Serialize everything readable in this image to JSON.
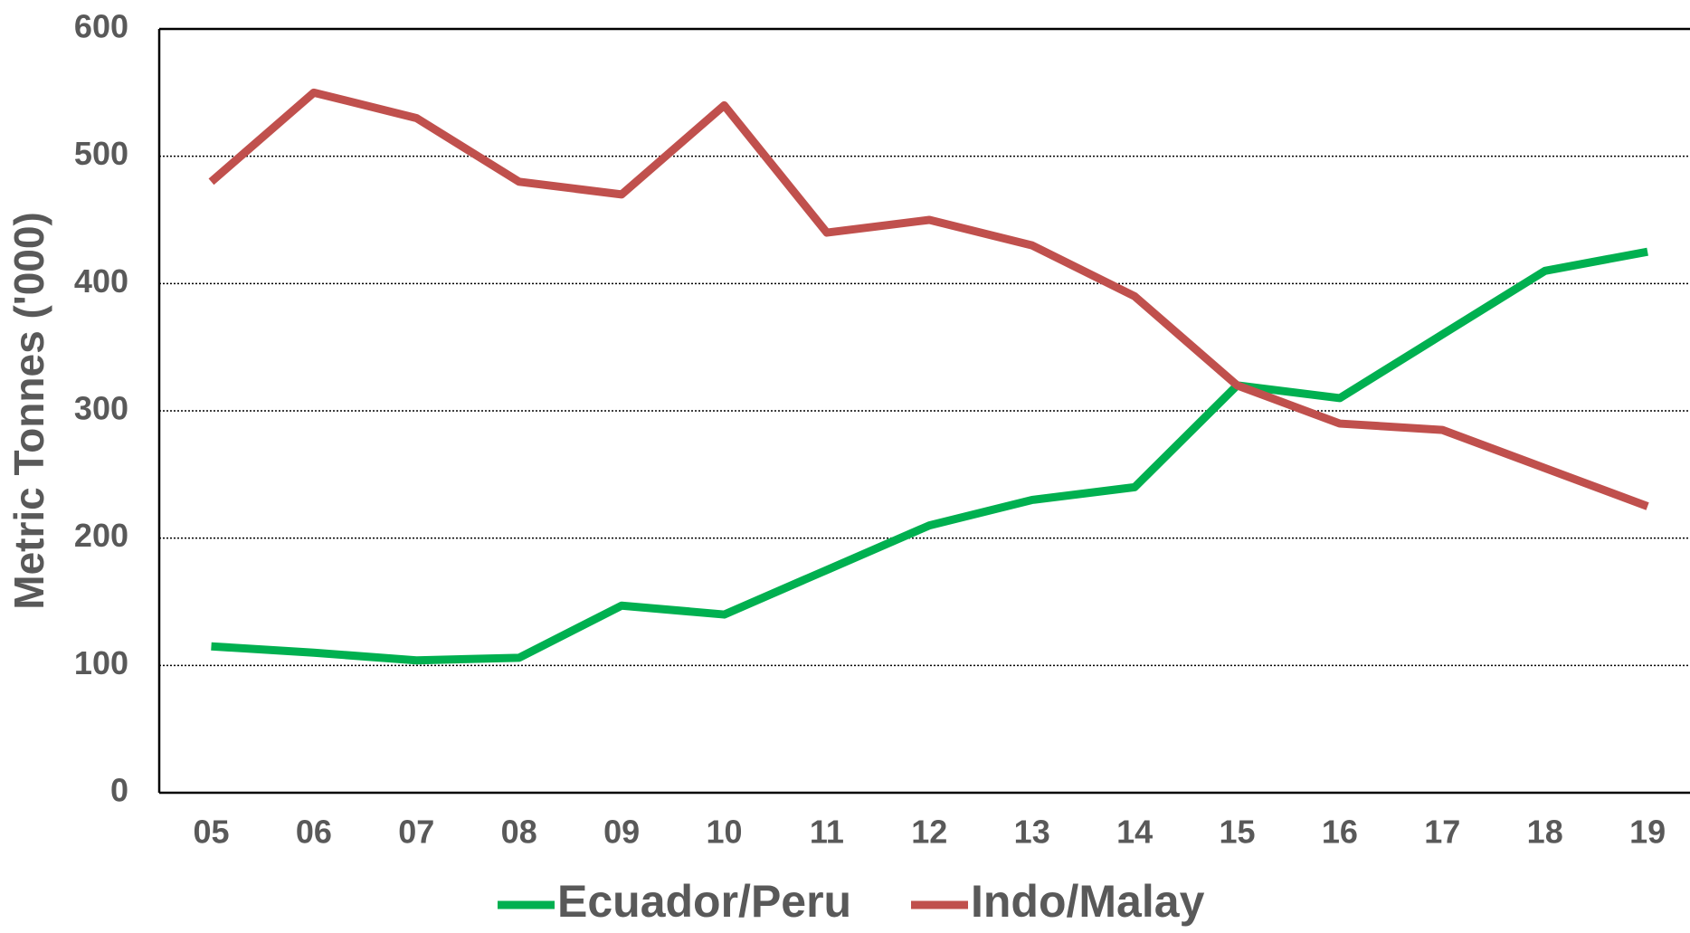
{
  "chart_data": {
    "type": "line",
    "y_label": "Metric Tonnes ('000)",
    "categories": [
      "05",
      "06",
      "07",
      "08",
      "09",
      "10",
      "11",
      "12",
      "13",
      "14",
      "15",
      "16",
      "17",
      "18",
      "19"
    ],
    "series": [
      {
        "name": "Ecuador/Peru",
        "color": "#00b050",
        "values": [
          115,
          110,
          104,
          106,
          147,
          140,
          175,
          210,
          230,
          240,
          320,
          310,
          360,
          410,
          425
        ]
      },
      {
        "name": "Indo/Malay",
        "color": "#c0504d",
        "values": [
          480,
          550,
          530,
          480,
          470,
          540,
          440,
          450,
          430,
          390,
          320,
          290,
          285,
          255,
          225
        ]
      }
    ],
    "ylim": [
      0,
      600
    ],
    "yticks": [
      0,
      100,
      200,
      300,
      400,
      500,
      600
    ],
    "grid": true,
    "legend": "bottom"
  }
}
